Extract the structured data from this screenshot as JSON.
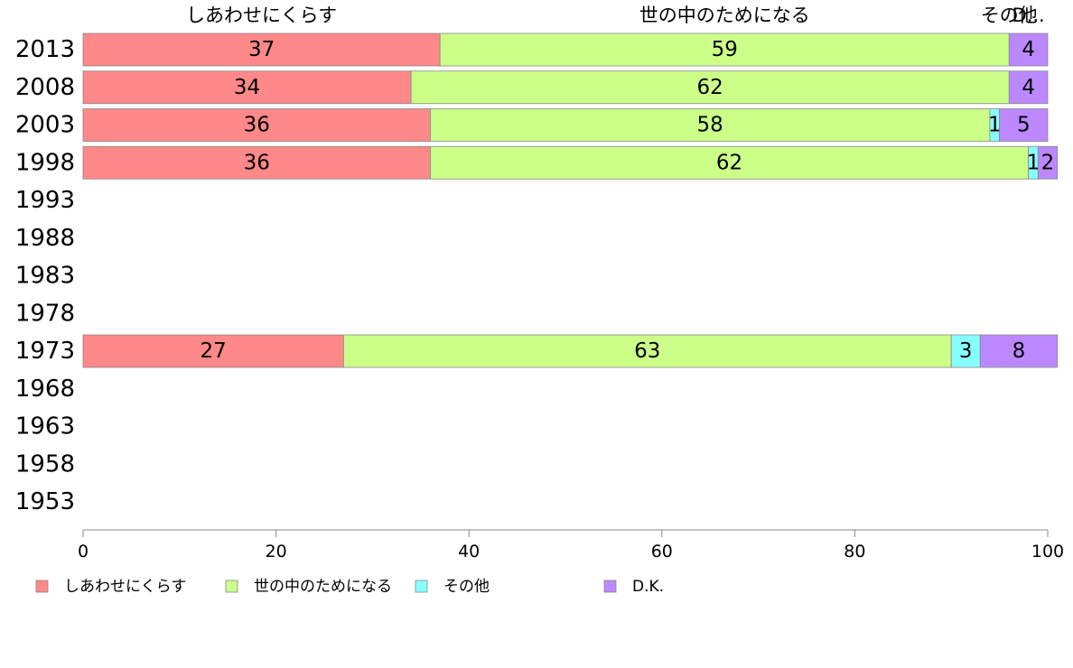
{
  "chart_data": {
    "type": "bar",
    "orientation": "horizontal",
    "stacked": true,
    "title": "",
    "xlabel": "",
    "ylabel": "",
    "xlim": [
      0,
      100
    ],
    "x_ticks": [
      "0",
      "20",
      "40",
      "60",
      "80",
      "100"
    ],
    "categories": [
      "2013",
      "2008",
      "2003",
      "1998",
      "1993",
      "1988",
      "1983",
      "1978",
      "1973",
      "1968",
      "1963",
      "1958",
      "1953"
    ],
    "series": [
      {
        "name": "しあわせにくらす",
        "color": "#ff8888",
        "values": [
          37,
          34,
          36,
          36,
          null,
          null,
          null,
          null,
          27,
          null,
          null,
          null,
          null
        ]
      },
      {
        "name": "世の中のためになる",
        "color": "#ccff88",
        "values": [
          59,
          62,
          58,
          62,
          null,
          null,
          null,
          null,
          63,
          null,
          null,
          null,
          null
        ]
      },
      {
        "name": "その他",
        "color": "#88ffff",
        "values": [
          0,
          0,
          1,
          1,
          null,
          null,
          null,
          null,
          3,
          null,
          null,
          null,
          null
        ]
      },
      {
        "name": "D.K.",
        "color": "#bb88ff",
        "values": [
          4,
          4,
          5,
          2,
          null,
          null,
          null,
          null,
          8,
          null,
          null,
          null,
          null
        ]
      }
    ],
    "top_labels": [
      "しあわせにくらす",
      "世の中のためになる",
      "その他",
      "D..."
    ],
    "grid": false,
    "legend_position": "bottom"
  }
}
